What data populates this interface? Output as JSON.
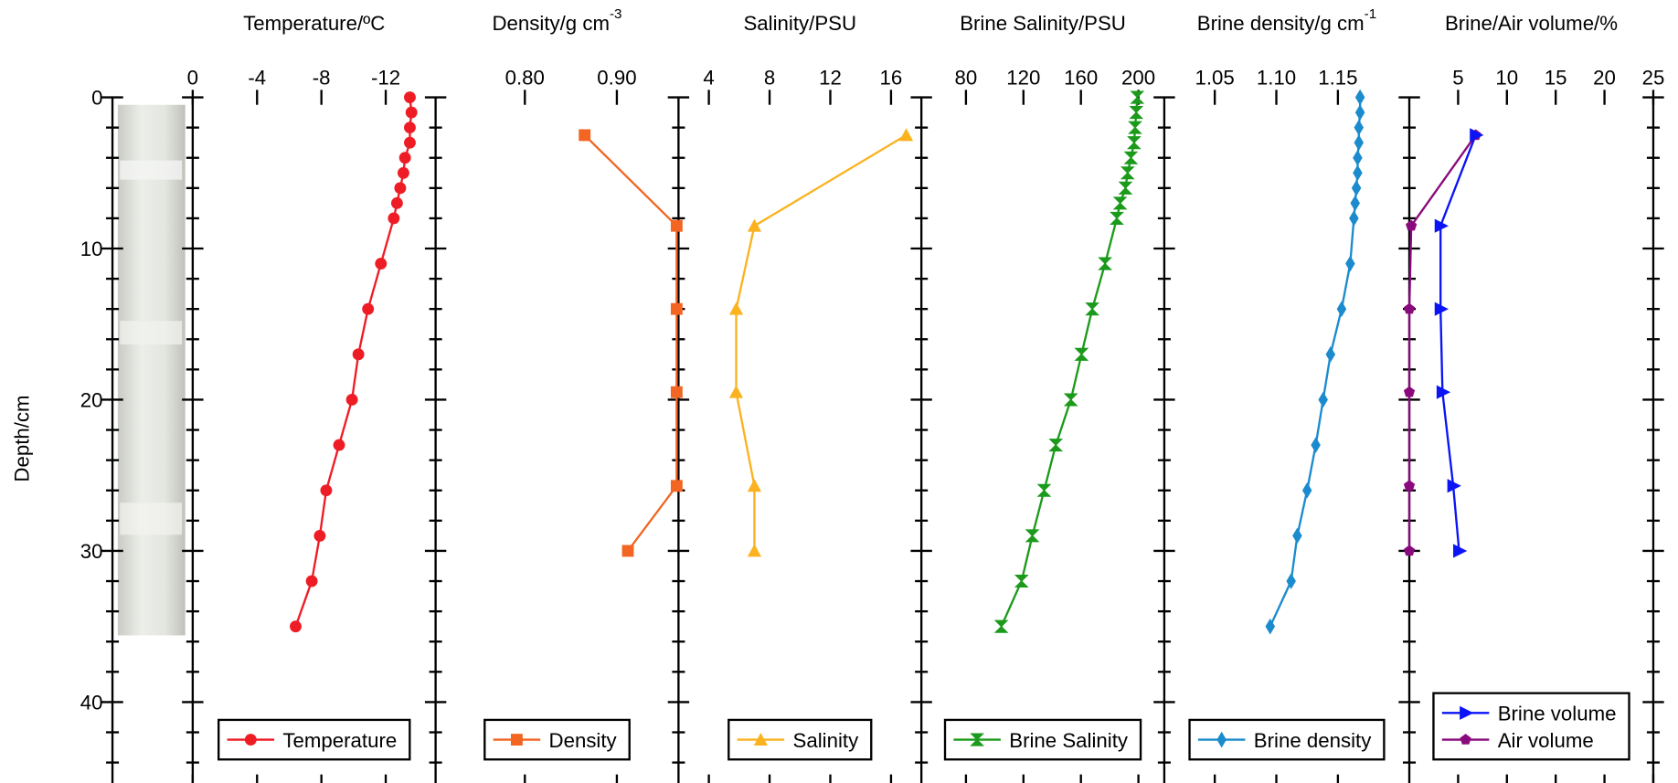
{
  "chart_data": [
    {
      "type": "line",
      "xlabel": "Temperature/ºC",
      "xlim": [
        0,
        -15.1
      ],
      "xticks": [
        0,
        -4,
        -8,
        -12
      ],
      "ylabel": "Depth/cm",
      "ylim": [
        0,
        45
      ],
      "yticks": [
        0,
        10,
        20,
        30,
        40
      ],
      "yticks_minor": [
        2,
        4,
        6,
        8,
        12,
        14,
        16,
        18,
        22,
        24,
        26,
        28,
        32,
        34,
        36,
        38,
        42,
        44
      ],
      "series": [
        {
          "name": "Temperature",
          "color": "#ee1c25",
          "marker": "circle",
          "depth": [
            0,
            1,
            2,
            3,
            4,
            5,
            6,
            7,
            8,
            11,
            14,
            17,
            20,
            23,
            26,
            29,
            32,
            35
          ],
          "values": [
            -13.5,
            -13.6,
            -13.5,
            -13.5,
            -13.2,
            -13.1,
            -12.9,
            -12.7,
            -12.5,
            -11.7,
            -10.9,
            -10.3,
            -9.9,
            -9.1,
            -8.3,
            -7.9,
            -7.4,
            -6.4
          ]
        }
      ]
    },
    {
      "type": "line",
      "xlabel": "Density/g cm",
      "xlabel_sup": "-3",
      "xlim": [
        0.703,
        0.967
      ],
      "xticks": [
        {
          "value": 0.8,
          "label": "0.80"
        },
        {
          "value": 0.9,
          "label": "0.90"
        }
      ],
      "series": [
        {
          "name": "Density",
          "color": "#f26522",
          "marker": "square",
          "depth": [
            2.5,
            8.5,
            14,
            19.5,
            25.7,
            30
          ],
          "values": [
            0.865,
            0.965,
            0.965,
            0.965,
            0.965,
            0.912
          ]
        }
      ]
    },
    {
      "type": "line",
      "xlabel": "Salinity/PSU",
      "xlim": [
        2,
        18
      ],
      "xticks": [
        4,
        8,
        12,
        16
      ],
      "series": [
        {
          "name": "Salinity",
          "color": "#fbb21f",
          "marker": "triangle-up",
          "depth": [
            2.5,
            8.5,
            14,
            19.5,
            25.7,
            30
          ],
          "values": [
            17,
            7,
            5.8,
            5.8,
            7,
            7
          ]
        }
      ]
    },
    {
      "type": "line",
      "xlabel": "Brine Salinity/PSU",
      "xlim": [
        49,
        218
      ],
      "xticks": [
        80,
        120,
        160,
        200
      ],
      "series": [
        {
          "name": "Brine Salinity",
          "color": "#1b9a1b",
          "marker": "hourglass",
          "depth": [
            0,
            1,
            2,
            3,
            4,
            5,
            6,
            7,
            8,
            11,
            14,
            17,
            20,
            23,
            26,
            29,
            32,
            35
          ],
          "values": [
            199.2,
            198.5,
            197.7,
            197,
            194.8,
            192.5,
            191,
            187.3,
            185,
            176.8,
            167.9,
            160.4,
            153,
            142.5,
            134.4,
            126.2,
            118.7,
            104.6
          ]
        }
      ]
    },
    {
      "type": "line",
      "xlabel": "Brine density/g cm",
      "xlabel_sup": "-1",
      "xlim": [
        1.009,
        1.208
      ],
      "xticks": [
        1.05,
        {
          "value": 1.1,
          "label": "1.10"
        },
        1.15
      ],
      "series": [
        {
          "name": "Brine density",
          "color": "#1b8bce",
          "marker": "diamond",
          "depth": [
            0,
            1,
            2,
            3,
            4,
            5,
            6,
            7,
            8,
            11,
            14,
            17,
            20,
            23,
            26,
            29,
            32,
            35
          ],
          "values": [
            1.168,
            1.168,
            1.167,
            1.167,
            1.166,
            1.166,
            1.165,
            1.164,
            1.163,
            1.16,
            1.153,
            1.144,
            1.138,
            1.132,
            1.125,
            1.117,
            1.112,
            1.095
          ]
        }
      ]
    },
    {
      "type": "line",
      "xlabel": "Brine/Air volume/%",
      "xlim": [
        0,
        25
      ],
      "xticks": [
        5,
        10,
        15,
        20,
        25
      ],
      "series": [
        {
          "name": "Brine volume",
          "color": "#0a14f5",
          "marker": "triangle-right",
          "depth": [
            2.5,
            8.5,
            14,
            19.5,
            25.7,
            30
          ],
          "values": [
            6.8,
            3.2,
            3.2,
            3.4,
            4.5,
            5.1
          ]
        },
        {
          "name": "Air volume",
          "color": "#8a0a7e",
          "marker": "pentagon",
          "depth": [
            2.5,
            8.5,
            14,
            19.5,
            25.7,
            30
          ],
          "values": [
            6.8,
            0.2,
            0,
            0,
            0,
            0
          ]
        }
      ]
    }
  ]
}
